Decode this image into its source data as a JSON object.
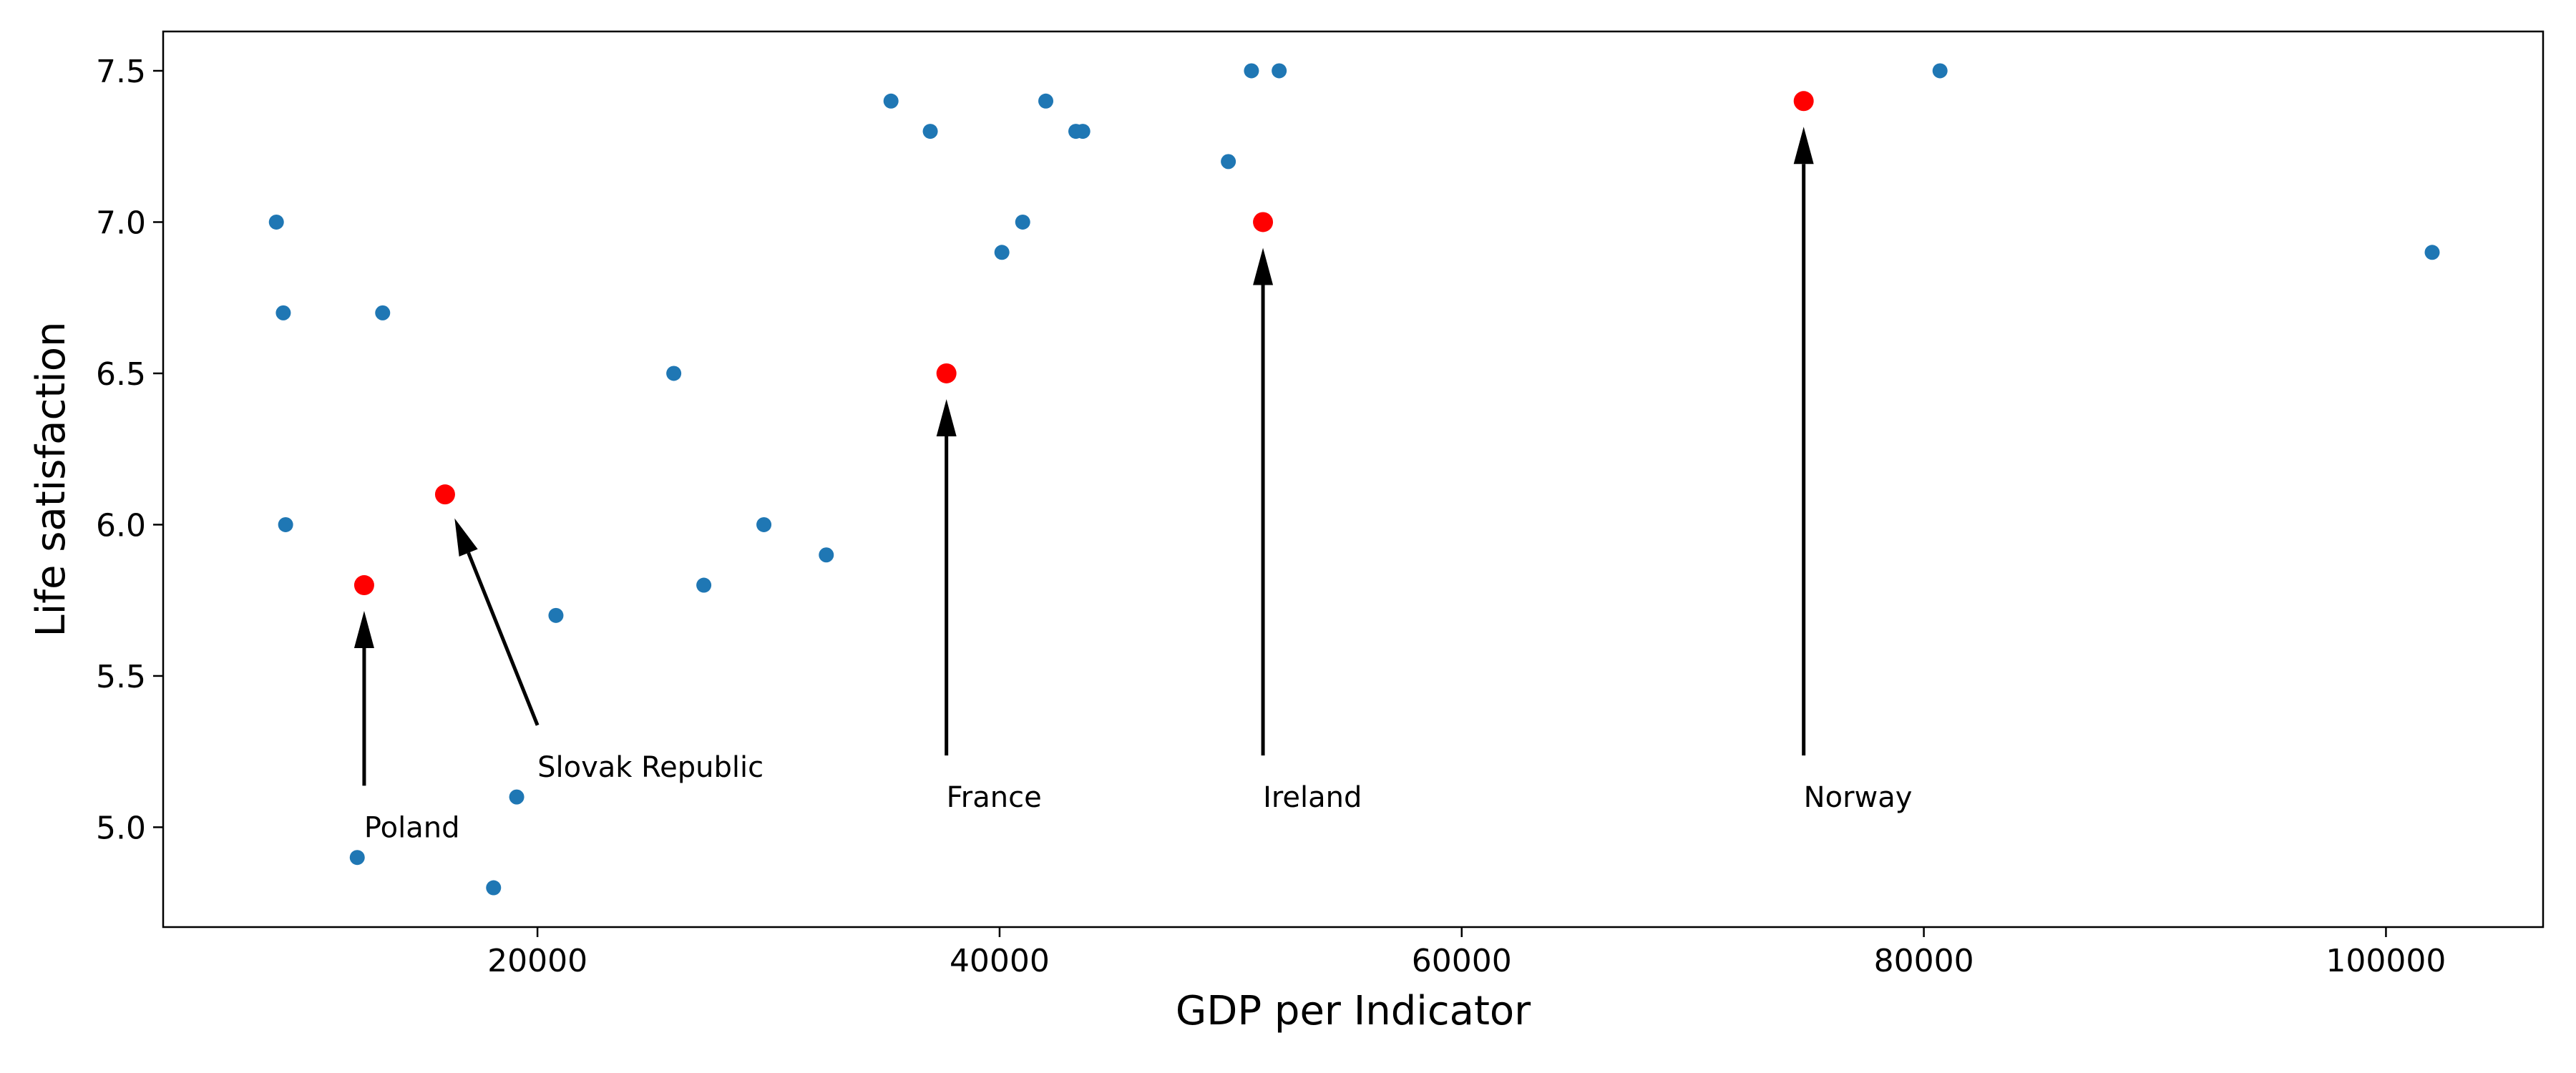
{
  "chart_data": {
    "type": "scatter",
    "title": "",
    "xlabel": "GDP per Indicator",
    "ylabel": "Life satisfaction",
    "xlim": [
      3800,
      106800
    ],
    "ylim": [
      4.67,
      7.63
    ],
    "xticks": [
      20000,
      40000,
      60000,
      80000,
      100000
    ],
    "xtick_labels": [
      "20000",
      "40000",
      "60000",
      "80000",
      "100000"
    ],
    "yticks": [
      5.0,
      5.5,
      6.0,
      6.5,
      7.0,
      7.5
    ],
    "ytick_labels": [
      "5.0",
      "5.5",
      "6.0",
      "6.5",
      "7.0",
      "7.5"
    ],
    "grid": false,
    "colors": {
      "points": "#1f77b4",
      "highlight": "#ff0000",
      "arrow": "#000000"
    },
    "points": [
      {
        "x": 8700,
        "y": 7.0
      },
      {
        "x": 9000,
        "y": 6.7
      },
      {
        "x": 9100,
        "y": 6.0
      },
      {
        "x": 13300,
        "y": 6.7
      },
      {
        "x": 12200,
        "y": 4.9
      },
      {
        "x": 18100,
        "y": 4.8
      },
      {
        "x": 19100,
        "y": 5.1
      },
      {
        "x": 20800,
        "y": 5.7
      },
      {
        "x": 25900,
        "y": 6.5
      },
      {
        "x": 27200,
        "y": 5.8
      },
      {
        "x": 29800,
        "y": 6.0
      },
      {
        "x": 32500,
        "y": 5.9
      },
      {
        "x": 35300,
        "y": 7.4
      },
      {
        "x": 37000,
        "y": 7.3
      },
      {
        "x": 40100,
        "y": 6.9
      },
      {
        "x": 41000,
        "y": 7.0
      },
      {
        "x": 42000,
        "y": 7.4
      },
      {
        "x": 43300,
        "y": 7.3
      },
      {
        "x": 43600,
        "y": 7.3
      },
      {
        "x": 49900,
        "y": 7.2
      },
      {
        "x": 50900,
        "y": 7.5
      },
      {
        "x": 52100,
        "y": 7.5
      },
      {
        "x": 80700,
        "y": 7.5
      },
      {
        "x": 102000,
        "y": 6.9
      }
    ],
    "highlighted": [
      {
        "name": "Poland",
        "x": 12500,
        "y": 5.8,
        "text_x": 12500,
        "text_y": 5.0
      },
      {
        "name": "Slovak Republic",
        "x": 16000,
        "y": 6.1,
        "text_x": 20000,
        "text_y": 5.2
      },
      {
        "name": "France",
        "x": 37700,
        "y": 6.5,
        "text_x": 37700,
        "text_y": 5.1
      },
      {
        "name": "Ireland",
        "x": 51400,
        "y": 7.0,
        "text_x": 51400,
        "text_y": 5.1
      },
      {
        "name": "Norway",
        "x": 74800,
        "y": 7.4,
        "text_x": 74800,
        "text_y": 5.1
      }
    ]
  }
}
